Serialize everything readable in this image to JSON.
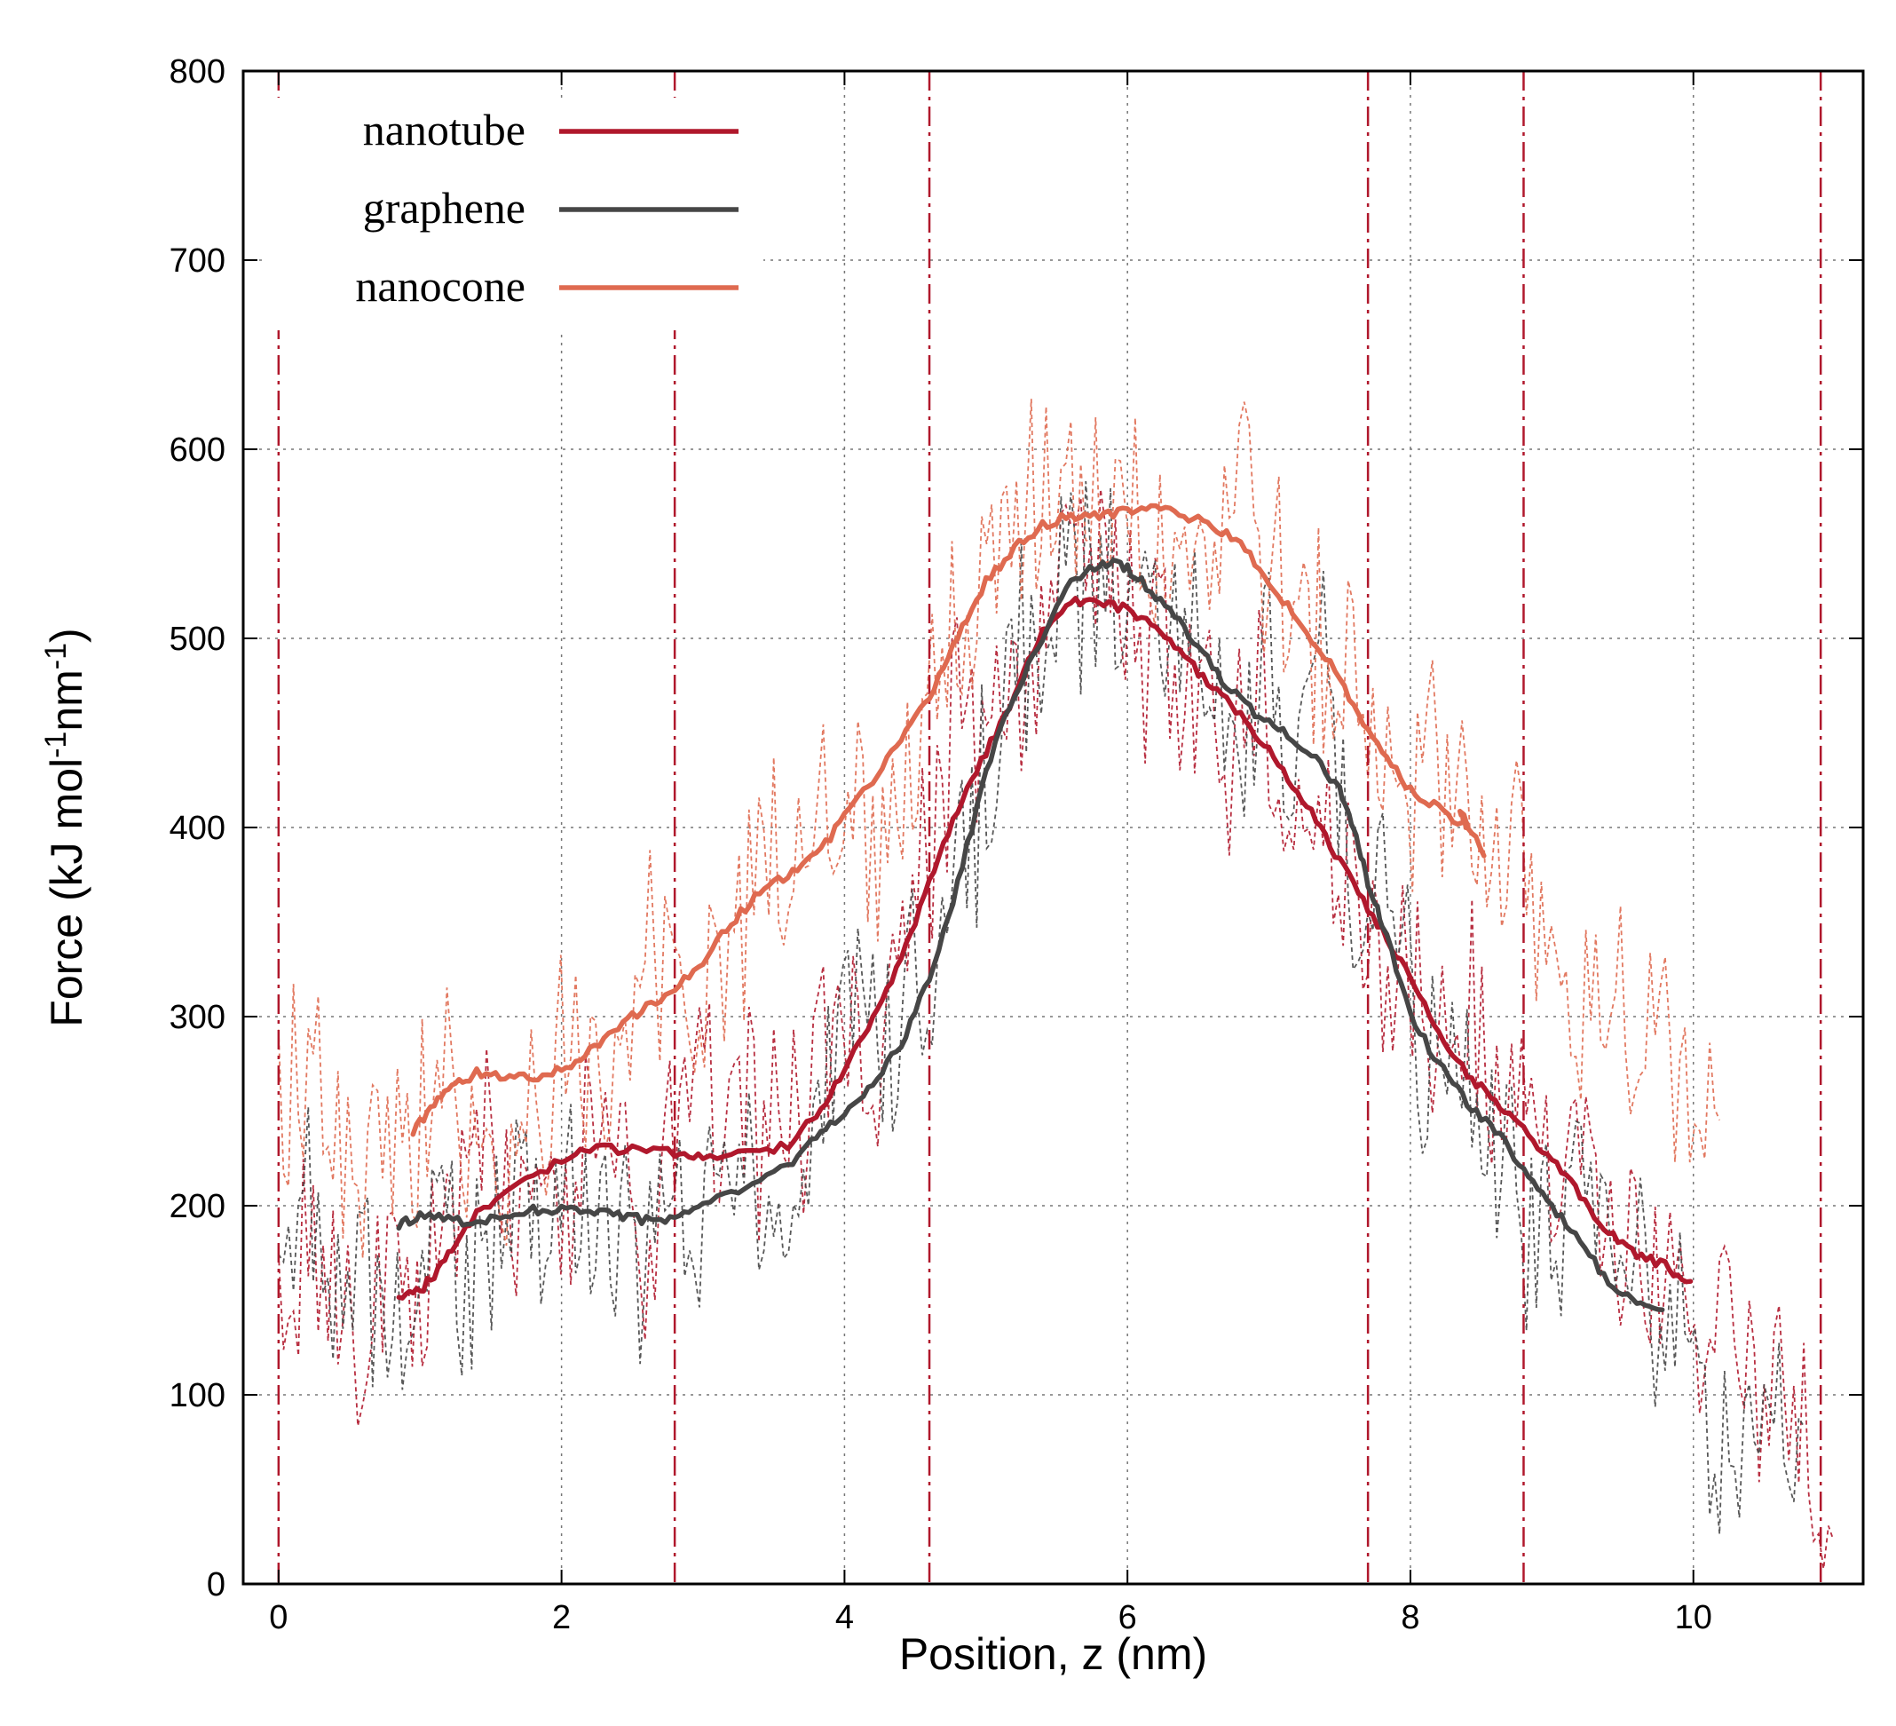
{
  "chart_data": {
    "type": "line",
    "title": "",
    "xlabel": "Position, z (nm)",
    "ylabel_main": "Force (kJ mol",
    "ylabel_sup1": "-1",
    "ylabel_mid": "nm",
    "ylabel_sup2": "-1",
    "ylabel_end": ")",
    "xlim": [
      -0.25,
      11.2
    ],
    "ylim": [
      0,
      800
    ],
    "xticks": [
      0,
      2,
      4,
      6,
      8,
      10
    ],
    "yticks": [
      0,
      100,
      200,
      300,
      400,
      500,
      600,
      700,
      800
    ],
    "grid": true,
    "legend_position": "top-left",
    "colors": {
      "nanotube": "#b0182c",
      "graphene": "#464646",
      "nanocone": "#df6a50",
      "vline": "#b0182c",
      "grid": "#777777"
    },
    "vertical_lines": [
      0.0,
      2.8,
      4.6,
      7.7,
      8.8,
      10.9
    ],
    "series": [
      {
        "name": "nanotube",
        "x": [
          0.85,
          1.0,
          1.15,
          1.3,
          1.45,
          1.7,
          2.0,
          2.2,
          2.5,
          2.8,
          3.0,
          3.3,
          3.6,
          3.8,
          4.0,
          4.2,
          4.4,
          4.6,
          4.8,
          5.0,
          5.2,
          5.4,
          5.6,
          5.8,
          6.0,
          6.2,
          6.4,
          6.6,
          6.8,
          7.0,
          7.2,
          7.4,
          7.6,
          7.8,
          8.0,
          8.2,
          8.4,
          8.6,
          8.8,
          9.0,
          9.2,
          9.4,
          9.6,
          9.8,
          9.98
        ],
        "values": [
          150,
          155,
          168,
          185,
          200,
          210,
          225,
          230,
          230,
          228,
          225,
          228,
          232,
          248,
          272,
          298,
          330,
          370,
          410,
          440,
          470,
          505,
          520,
          520,
          515,
          505,
          490,
          475,
          460,
          440,
          420,
          395,
          370,
          345,
          320,
          290,
          270,
          255,
          240,
          225,
          205,
          185,
          175,
          168,
          160
        ]
      },
      {
        "name": "graphene",
        "x": [
          0.85,
          1.0,
          1.2,
          1.4,
          1.6,
          1.8,
          2.0,
          2.2,
          2.4,
          2.6,
          2.8,
          3.0,
          3.3,
          3.6,
          3.8,
          4.0,
          4.2,
          4.4,
          4.6,
          4.8,
          5.0,
          5.2,
          5.4,
          5.6,
          5.8,
          5.95,
          6.1,
          6.3,
          6.5,
          6.7,
          6.9,
          7.1,
          7.3,
          7.5,
          7.6,
          7.7,
          7.8,
          8.0,
          8.2,
          8.4,
          8.6,
          8.8,
          9.0,
          9.2,
          9.4,
          9.6,
          9.78
        ],
        "values": [
          190,
          195,
          193,
          190,
          195,
          198,
          198,
          198,
          195,
          192,
          193,
          200,
          210,
          222,
          235,
          250,
          265,
          285,
          320,
          370,
          430,
          470,
          500,
          530,
          540,
          540,
          530,
          515,
          495,
          475,
          460,
          450,
          440,
          420,
          400,
          370,
          350,
          300,
          275,
          255,
          240,
          220,
          200,
          180,
          160,
          150,
          145
        ]
      },
      {
        "name": "nanocone",
        "x": [
          0.95,
          1.1,
          1.25,
          1.4,
          1.6,
          1.8,
          2.0,
          2.2,
          2.4,
          2.6,
          2.8,
          3.0,
          3.2,
          3.4,
          3.6,
          3.8,
          4.0,
          4.2,
          4.4,
          4.6,
          4.8,
          5.0,
          5.2,
          5.4,
          5.6,
          5.8,
          6.0,
          6.2,
          6.4,
          6.6,
          6.8,
          7.0,
          7.2,
          7.4,
          7.6,
          7.8,
          8.0,
          8.2,
          8.4,
          8.35,
          8.52
        ],
        "values": [
          238,
          255,
          265,
          270,
          268,
          268,
          272,
          282,
          295,
          305,
          315,
          330,
          350,
          365,
          375,
          385,
          405,
          425,
          445,
          470,
          500,
          530,
          548,
          560,
          565,
          565,
          568,
          570,
          565,
          560,
          550,
          530,
          510,
          490,
          465,
          440,
          420,
          410,
          400,
          410,
          385
        ]
      }
    ]
  }
}
